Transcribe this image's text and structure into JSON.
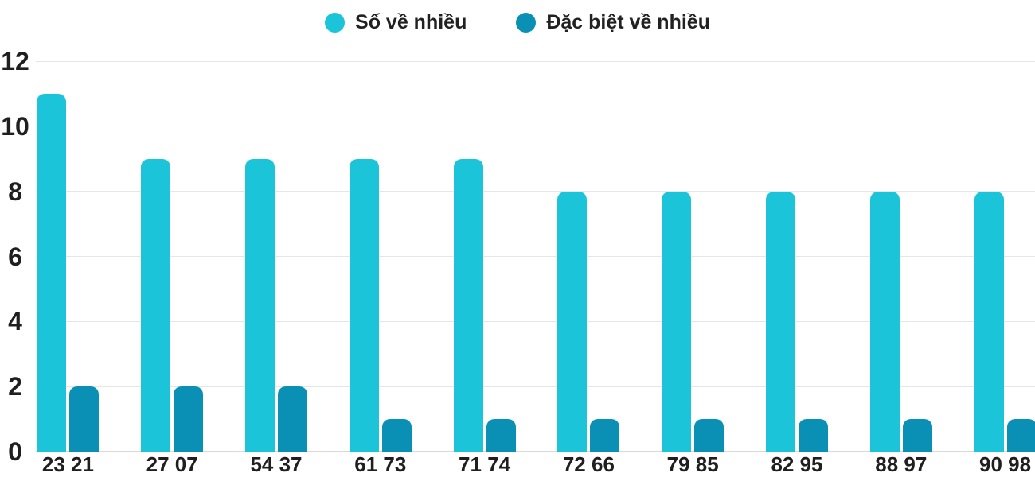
{
  "legend": {
    "items": [
      {
        "label": "Số về nhiều",
        "color": "#1cc4da"
      },
      {
        "label": "Đặc biệt về nhiều",
        "color": "#0a90b4"
      }
    ]
  },
  "chart_data": {
    "type": "bar",
    "title": "",
    "xlabel": "",
    "ylabel": "",
    "categories": [
      "23 21",
      "27 07",
      "54 37",
      "61 73",
      "71 74",
      "72 66",
      "79 85",
      "82 95",
      "88 97",
      "90 98"
    ],
    "series": [
      {
        "name": "Số về nhiều",
        "color": "#1cc4da",
        "values": [
          11,
          9,
          9,
          9,
          9,
          8,
          8,
          8,
          8,
          8
        ]
      },
      {
        "name": "Đặc biệt về nhiều",
        "color": "#0a90b4",
        "values": [
          2,
          2,
          2,
          1,
          1,
          1,
          1,
          1,
          1,
          1
        ]
      }
    ],
    "ylim": [
      0,
      12
    ],
    "yticks": [
      0,
      2,
      4,
      6,
      8,
      10,
      12
    ],
    "grid": true,
    "legend_position": "top",
    "text_color": "#1f1f1f",
    "gridline_color": "#e6e6e6",
    "baseline_color": "#d9d9d9"
  }
}
